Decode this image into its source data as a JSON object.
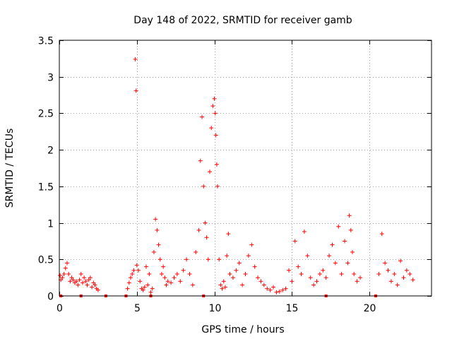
{
  "chart_data": {
    "type": "scatter",
    "title": "Day 148 of 2022, SRMTID for receiver gamb",
    "xlabel": "GPS time / hours",
    "ylabel": "SRMTID / TECUs",
    "xlim": [
      0,
      24
    ],
    "ylim": [
      0,
      3.5
    ],
    "xticks": [
      0,
      5,
      10,
      15,
      20
    ],
    "xtick_labels": [
      "0",
      "5",
      "10",
      "15",
      "20"
    ],
    "yticks": [
      0,
      0.5,
      1,
      1.5,
      2,
      2.5,
      3,
      3.5
    ],
    "ytick_labels": [
      "0",
      "0.5",
      "1",
      "1.5",
      "2",
      "2.5",
      "3",
      "3.5"
    ],
    "grid": true,
    "marker": "+",
    "color": "#ff0000",
    "series": [
      {
        "name": "SRMTID",
        "x": [
          0.05,
          0.1,
          0.2,
          0.3,
          0.4,
          0.5,
          0.6,
          0.7,
          0.8,
          0.9,
          1.0,
          1.1,
          1.2,
          1.3,
          1.4,
          1.5,
          1.6,
          1.7,
          1.8,
          1.9,
          2.0,
          2.1,
          2.2,
          2.3,
          2.4,
          2.5,
          4.4,
          4.5,
          4.6,
          4.7,
          4.8,
          4.9,
          4.95,
          5.0,
          5.1,
          5.2,
          5.3,
          5.4,
          5.5,
          5.6,
          5.7,
          5.8,
          5.9,
          6.0,
          6.1,
          6.2,
          6.3,
          6.4,
          6.5,
          6.6,
          6.7,
          6.8,
          6.9,
          7.0,
          7.2,
          7.4,
          7.6,
          7.8,
          8.0,
          8.2,
          8.4,
          8.6,
          8.8,
          9.0,
          9.1,
          9.2,
          9.3,
          9.4,
          9.5,
          9.6,
          9.7,
          9.8,
          9.9,
          10.0,
          10.05,
          10.1,
          10.15,
          10.2,
          10.3,
          10.4,
          10.5,
          10.6,
          10.7,
          10.8,
          10.9,
          11.0,
          11.2,
          11.4,
          11.6,
          11.8,
          12.0,
          12.2,
          12.4,
          12.6,
          12.8,
          13.0,
          13.2,
          13.4,
          13.6,
          13.8,
          14.0,
          14.2,
          14.4,
          14.6,
          14.8,
          15.0,
          15.2,
          15.4,
          15.6,
          15.8,
          16.0,
          16.2,
          16.4,
          16.6,
          16.8,
          17.0,
          17.2,
          17.4,
          17.6,
          17.8,
          18.0,
          18.2,
          18.4,
          18.6,
          18.7,
          18.8,
          18.9,
          19.0,
          19.2,
          19.4,
          20.6,
          20.8,
          21.0,
          21.2,
          21.4,
          21.6,
          21.8,
          22.0,
          22.2,
          22.4,
          22.6,
          22.8
        ],
        "y": [
          0.28,
          0.22,
          0.25,
          0.3,
          0.38,
          0.45,
          0.3,
          0.2,
          0.25,
          0.22,
          0.18,
          0.2,
          0.15,
          0.22,
          0.3,
          0.18,
          0.25,
          0.2,
          0.15,
          0.22,
          0.25,
          0.12,
          0.18,
          0.15,
          0.1,
          0.08,
          0.1,
          0.18,
          0.25,
          0.3,
          0.35,
          3.24,
          2.81,
          0.42,
          0.35,
          0.2,
          0.1,
          0.08,
          0.12,
          0.4,
          0.15,
          0.3,
          0.05,
          0.1,
          0.6,
          1.05,
          0.9,
          0.7,
          0.5,
          0.3,
          0.4,
          0.25,
          0.15,
          0.2,
          0.18,
          0.25,
          0.3,
          0.2,
          0.35,
          0.5,
          0.3,
          0.15,
          0.6,
          0.9,
          1.85,
          2.45,
          1.5,
          1.0,
          0.8,
          0.5,
          1.7,
          2.3,
          2.6,
          2.7,
          2.5,
          2.2,
          1.8,
          1.5,
          0.5,
          0.15,
          0.1,
          0.2,
          0.12,
          0.55,
          0.85,
          0.3,
          0.25,
          0.35,
          0.45,
          0.15,
          0.3,
          0.55,
          0.7,
          0.4,
          0.25,
          0.2,
          0.15,
          0.1,
          0.08,
          0.12,
          0.05,
          0.06,
          0.08,
          0.1,
          0.35,
          0.2,
          0.75,
          0.4,
          0.3,
          0.88,
          0.55,
          0.25,
          0.15,
          0.2,
          0.3,
          0.35,
          0.25,
          0.55,
          0.7,
          0.45,
          0.95,
          0.3,
          0.75,
          0.45,
          1.1,
          0.9,
          0.6,
          0.3,
          0.2,
          0.25,
          0.3,
          0.85,
          0.45,
          0.35,
          0.2,
          0.3,
          0.15,
          0.48,
          0.25,
          0.35,
          0.3,
          0.22
        ],
        "zero_markers": [
          0.1,
          1.4,
          3.0,
          4.3,
          5.9,
          9.3,
          17.2,
          20.4
        ]
      }
    ]
  }
}
